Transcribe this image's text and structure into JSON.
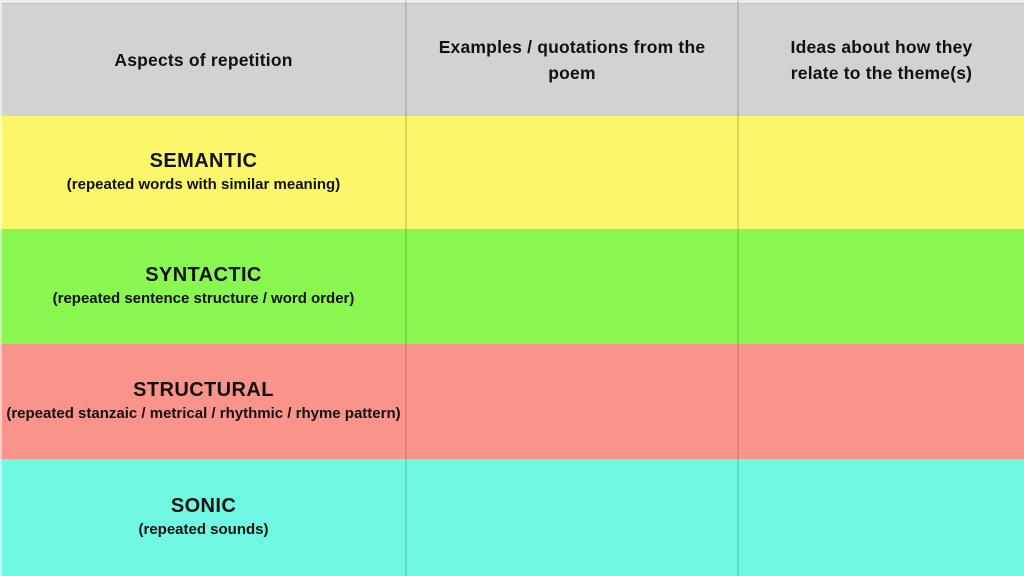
{
  "header": {
    "bg": "#d2d2d2",
    "columns": [
      {
        "label": "Aspects of repetition"
      },
      {
        "label": "Examples / quotations from the poem"
      },
      {
        "label": "Ideas about how they relate to the theme(s)"
      }
    ]
  },
  "rows": [
    {
      "title": "SEMANTIC",
      "subtitle": "(repeated words with similar meaning)",
      "bg": "#fcf76a",
      "example": "",
      "ideas": ""
    },
    {
      "title": "SYNTACTIC",
      "subtitle": "(repeated sentence structure / word order)",
      "bg": "#8af650",
      "example": "",
      "ideas": ""
    },
    {
      "title": "STRUCTURAL",
      "subtitle": "(repeated stanzaic / metrical / rhythmic / rhyme pattern)",
      "bg": "#fa938a",
      "example": "",
      "ideas": ""
    },
    {
      "title": "SONIC",
      "subtitle": "(repeated sounds)",
      "bg": "#6ff7e2",
      "example": "",
      "ideas": ""
    }
  ],
  "colors": {
    "text": "#111111",
    "divider": "rgba(0,0,0,0.12)"
  }
}
